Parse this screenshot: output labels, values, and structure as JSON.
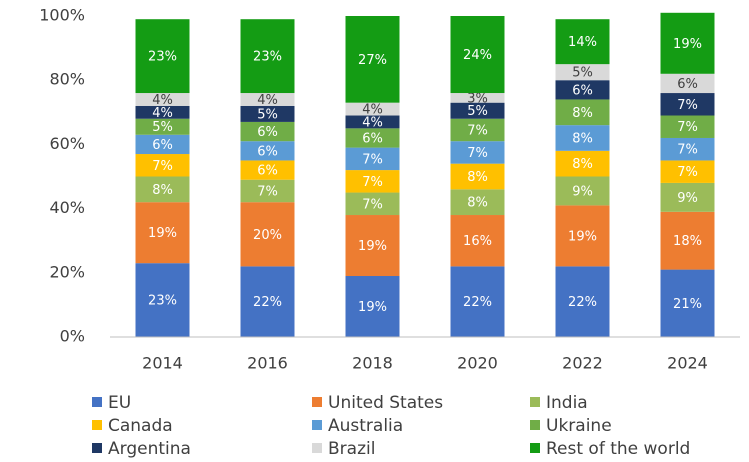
{
  "chart_data": {
    "type": "stacked_bar",
    "categories": [
      "2014",
      "2016",
      "2018",
      "2020",
      "2022",
      "2024"
    ],
    "ylim": [
      0,
      100
    ],
    "yticks": [
      {
        "value": 0,
        "label": "0%"
      },
      {
        "value": 20,
        "label": "20%"
      },
      {
        "value": 40,
        "label": "40%"
      },
      {
        "value": 60,
        "label": "60%"
      },
      {
        "value": 80,
        "label": "80%"
      },
      {
        "value": 100,
        "label": "100%"
      }
    ],
    "series": [
      {
        "name": "EU",
        "color": "#4472c4",
        "values": [
          23,
          22,
          19,
          22,
          22,
          21
        ],
        "value_labels": [
          "23%",
          "22%",
          "19%",
          "22%",
          "22%",
          "21%"
        ]
      },
      {
        "name": "United States",
        "color": "#ed7d31",
        "values": [
          19,
          20,
          19,
          16,
          19,
          18
        ],
        "value_labels": [
          "19%",
          "20%",
          "19%",
          "16%",
          "19%",
          "18%"
        ]
      },
      {
        "name": "India",
        "color": "#9bbb59",
        "values": [
          8,
          7,
          7,
          8,
          9,
          9
        ],
        "value_labels": [
          "8%",
          "7%",
          "7%",
          "8%",
          "9%",
          "9%"
        ]
      },
      {
        "name": "Canada",
        "color": "#ffc000",
        "values": [
          7,
          6,
          7,
          8,
          8,
          7
        ],
        "value_labels": [
          "7%",
          "6%",
          "7%",
          "8%",
          "8%",
          "7%"
        ]
      },
      {
        "name": "Australia",
        "color": "#5b9bd5",
        "values": [
          6,
          6,
          7,
          7,
          8,
          7
        ],
        "value_labels": [
          "6%",
          "6%",
          "7%",
          "7%",
          "8%",
          "7%"
        ]
      },
      {
        "name": "Ukraine",
        "color": "#70ad47",
        "values": [
          5,
          6,
          6,
          7,
          8,
          7
        ],
        "value_labels": [
          "5%",
          "6%",
          "6%",
          "7%",
          "8%",
          "7%"
        ]
      },
      {
        "name": "Argentina",
        "color": "#1f3864",
        "values": [
          4,
          5,
          4,
          5,
          6,
          7
        ],
        "value_labels": [
          "4%",
          "5%",
          "4%",
          "5%",
          "6%",
          "7%"
        ]
      },
      {
        "name": "Brazil",
        "color": "#d9d9d9",
        "values": [
          4,
          4,
          4,
          3,
          5,
          6
        ],
        "value_labels": [
          "4%",
          "4%",
          "4%",
          "3%",
          "5%",
          "6%"
        ]
      },
      {
        "name": "Rest of the world",
        "color": "#149c14",
        "values": [
          23,
          23,
          27,
          24,
          14,
          19
        ],
        "value_labels": [
          "23%",
          "23%",
          "27%",
          "24%",
          "14%",
          "19%"
        ]
      }
    ]
  }
}
